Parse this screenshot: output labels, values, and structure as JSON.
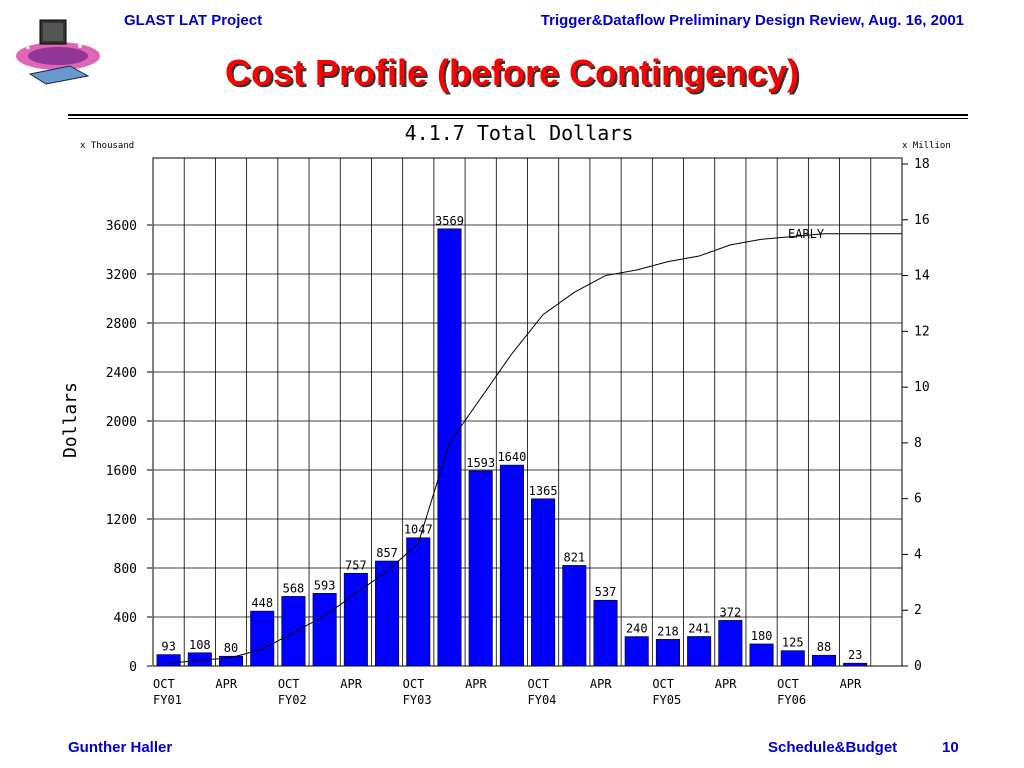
{
  "header": {
    "left": "GLAST LAT Project",
    "right": "Trigger&Dataflow Preliminary Design Review, Aug. 16, 2001"
  },
  "slide_title": "Cost Profile (before Contingency)",
  "footer": {
    "author": "Gunther Haller",
    "section": "Schedule&Budget",
    "page": "10"
  },
  "chart_data": {
    "type": "bar",
    "title": "4.1.7 Total Dollars",
    "ylabel": "Dollars",
    "left_unit": "x Thousand",
    "right_unit": "x Million",
    "ylim": [
      0,
      4000
    ],
    "y2lim": [
      0,
      18
    ],
    "yticks": [
      0,
      400,
      800,
      1200,
      1600,
      2000,
      2400,
      2800,
      3200,
      3600
    ],
    "y2ticks": [
      0,
      2,
      4,
      6,
      8,
      10,
      12,
      14,
      16,
      18
    ],
    "values": [
      93,
      108,
      80,
      448,
      568,
      593,
      757,
      857,
      1047,
      3569,
      1593,
      1640,
      1365,
      821,
      537,
      240,
      218,
      241,
      372,
      180,
      125,
      88,
      23
    ],
    "x_month_labels": [
      "OCT",
      "APR",
      "OCT",
      "APR",
      "OCT",
      "APR",
      "OCT",
      "APR",
      "OCT",
      "APR",
      "OCT",
      "APR"
    ],
    "x_fy_labels": [
      "FY01",
      "FY02",
      "FY03",
      "FY04",
      "FY05",
      "FY06"
    ],
    "cumulative_label": "EARLY",
    "cumulative_millions": [
      0.1,
      0.2,
      0.3,
      0.6,
      1.2,
      1.8,
      2.6,
      3.4,
      4.4,
      8.0,
      9.6,
      11.2,
      12.6,
      13.4,
      14.0,
      14.2,
      14.5,
      14.7,
      15.1,
      15.3,
      15.4,
      15.5,
      15.5
    ],
    "bar_color": "#0000ff",
    "grid": true
  }
}
